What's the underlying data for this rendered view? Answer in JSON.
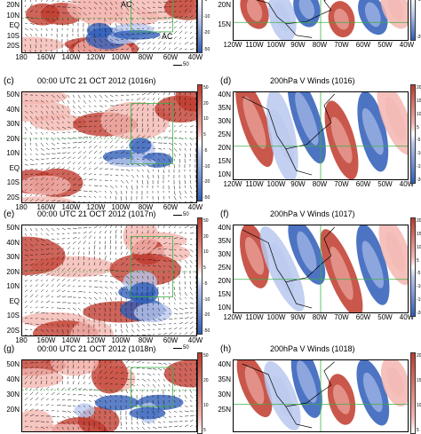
{
  "figure": {
    "panels": [
      {
        "id": "a",
        "label": "",
        "title": "",
        "type": "wind-vectors",
        "top_clip": true,
        "y_labels": [
          "20N",
          "10N",
          "EQ",
          "10S",
          "20S"
        ],
        "x_labels": [
          "180",
          "160W",
          "140W",
          "120W",
          "100W",
          "80W",
          "60W",
          "40W"
        ],
        "annotations": [
          "AC",
          "AC"
        ],
        "cbar_ticks": [
          "-5",
          "-10",
          "-20",
          "-50"
        ],
        "scale_label": "50"
      },
      {
        "id": "b",
        "label": "",
        "title": "",
        "type": "v-winds",
        "top_clip": true,
        "y_labels": [
          "20N",
          "15N"
        ],
        "x_labels": [
          "120W",
          "110W",
          "100W",
          "90W",
          "80W",
          "70W",
          "60W",
          "50W",
          "40W"
        ],
        "cbar_ticks": [
          "-15",
          "-20"
        ]
      },
      {
        "id": "c",
        "label": "(c)",
        "title": "00:00 UTC 21 OCT 2012 (1016n)",
        "type": "wind-vectors",
        "y_labels": [
          "50N",
          "40N",
          "30N",
          "20N",
          "10N",
          "EQ",
          "10S",
          "20S"
        ],
        "x_labels": [
          "180",
          "160W",
          "140W",
          "120W",
          "100W",
          "80W",
          "60W",
          "40W"
        ],
        "cbar_ticks": [
          "50",
          "20",
          "10",
          "5",
          "-5",
          "-10",
          "-20",
          "-50"
        ],
        "scale_label": "50"
      },
      {
        "id": "d",
        "label": "(d)",
        "title": "200hPa V Winds (1016)",
        "type": "v-winds",
        "y_labels": [
          "40N",
          "35N",
          "30N",
          "25N",
          "20N",
          "15N",
          "10N"
        ],
        "x_labels": [
          "120W",
          "110W",
          "100W",
          "90W",
          "80W",
          "70W",
          "60W",
          "50W",
          "40W"
        ],
        "cbar_ticks": [
          "20",
          "15",
          "10",
          "5",
          "-5",
          "-10",
          "-15",
          "-20"
        ]
      },
      {
        "id": "e",
        "label": "(e)",
        "title": "00:00 UTC 21 OCT 2012 (1017n)",
        "type": "wind-vectors",
        "y_labels": [
          "50N",
          "40N",
          "30N",
          "20N",
          "10N",
          "EQ",
          "10S",
          "20S"
        ],
        "x_labels": [
          "180",
          "160W",
          "140W",
          "120W",
          "100W",
          "80W",
          "60W",
          "40W"
        ],
        "cbar_ticks": [
          "50",
          "20",
          "10",
          "5",
          "-5",
          "-10",
          "-20",
          "-50"
        ],
        "scale_label": "50"
      },
      {
        "id": "f",
        "label": "(f)",
        "title": "200hPa V Winds (1017)",
        "type": "v-winds",
        "y_labels": [
          "40N",
          "35N",
          "30N",
          "25N",
          "20N",
          "15N",
          "10N"
        ],
        "x_labels": [
          "120W",
          "110W",
          "100W",
          "90W",
          "80W",
          "70W",
          "60W",
          "50W",
          "40W"
        ],
        "cbar_ticks": [
          "20",
          "15",
          "10",
          "5",
          "-5",
          "-10",
          "-15",
          "-20"
        ]
      },
      {
        "id": "g",
        "label": "(g)",
        "title": "00:00 UTC 21 OCT 2012 (1018n)",
        "type": "wind-vectors",
        "bottom_clip": true,
        "y_labels": [
          "50N",
          "40N",
          "30N",
          "20N"
        ],
        "x_labels": [],
        "cbar_ticks": [
          "50",
          "20",
          "10",
          "5"
        ]
      },
      {
        "id": "h",
        "label": "(h)",
        "title": "200hPa V Winds (1018)",
        "type": "v-winds",
        "bottom_clip": true,
        "y_labels": [
          "40N",
          "35N",
          "30N",
          "25N"
        ],
        "x_labels": [],
        "cbar_ticks": [
          "20",
          "15",
          "10",
          "5"
        ]
      }
    ],
    "colors": {
      "red_strong": "#c0392b",
      "red_light": "#f4b6b0",
      "blue_strong": "#2e5cb8",
      "blue_light": "#b9c8ee",
      "grid_green": "#3cb043",
      "vector": "#111111"
    }
  }
}
